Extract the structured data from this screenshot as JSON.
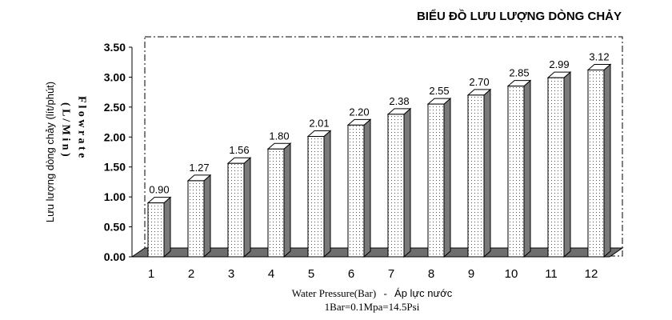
{
  "chart_data": {
    "type": "bar",
    "title": "BIỂU ĐỒ LƯU LƯỢNG DÒNG CHẢY",
    "ylabel": "Lưu lượng dòng chảy (lít/phút)",
    "ylabel_en_left": "( L / M i n )",
    "ylabel_en_right": "F l o w r a t e",
    "xlabel": "Water Pressure(Bar)",
    "xlabel_separator": "-",
    "xlabel_vi": "Áp lực nước",
    "note": "1Bar=0.1Mpa=14.5Psi",
    "categories": [
      "1",
      "2",
      "3",
      "4",
      "5",
      "6",
      "7",
      "8",
      "9",
      "10",
      "11",
      "12"
    ],
    "values": [
      0.9,
      1.27,
      1.56,
      1.8,
      2.01,
      2.2,
      2.38,
      2.55,
      2.7,
      2.85,
      2.99,
      3.12
    ],
    "data_labels": [
      "0.90",
      "1.27",
      "1.56",
      "1.80",
      "2.01",
      "2.20",
      "2.38",
      "2.55",
      "2.70",
      "2.85",
      "2.99",
      "3.12"
    ],
    "yticks": [
      "0.00",
      "0.50",
      "1.00",
      "1.50",
      "2.00",
      "2.50",
      "3.00",
      "3.50"
    ],
    "ylim": [
      0,
      3.5
    ],
    "grid": false,
    "legend": "none"
  }
}
